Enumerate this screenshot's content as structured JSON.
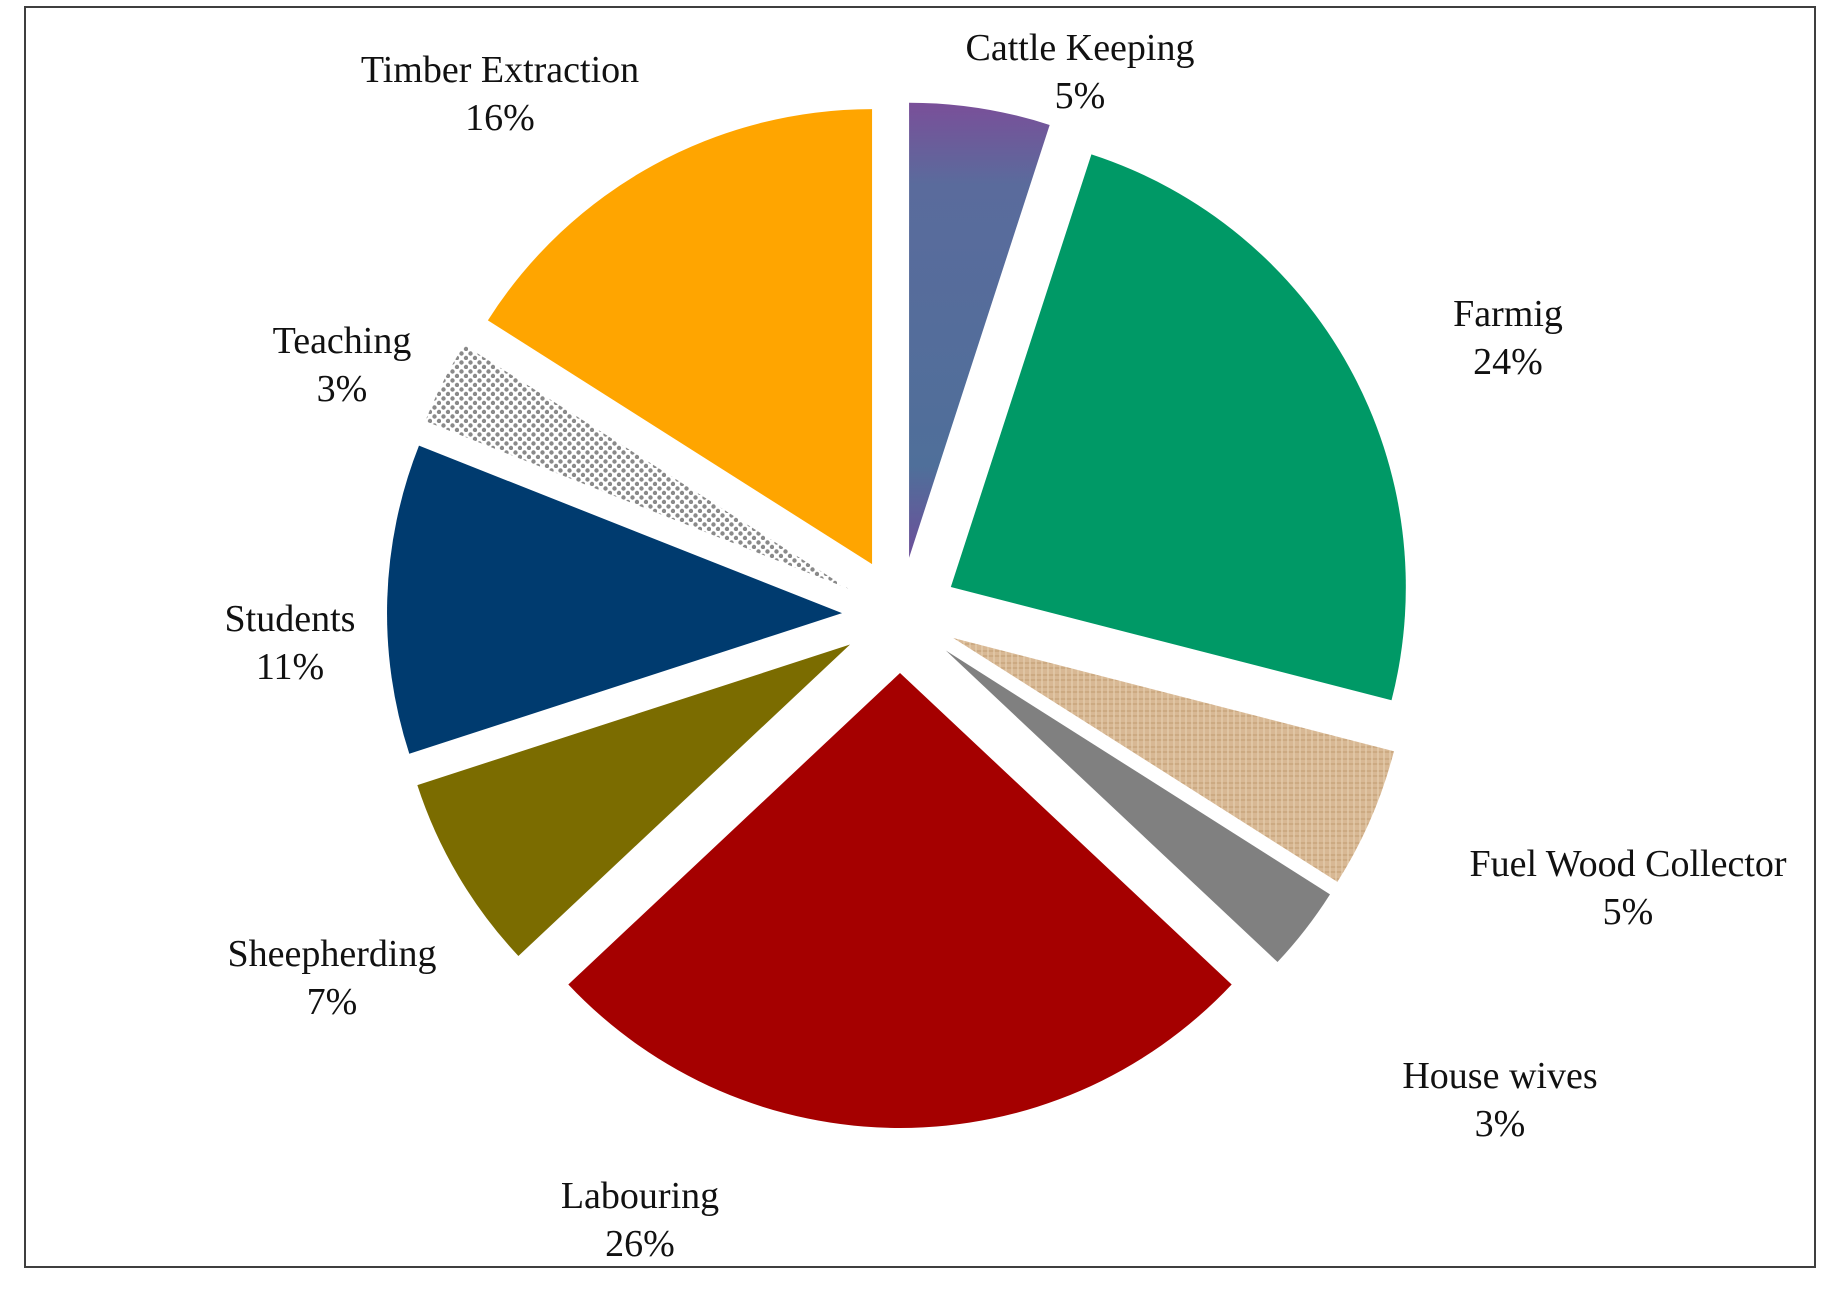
{
  "chart_data": {
    "type": "pie",
    "title": "",
    "exploded": true,
    "start": "top",
    "direction": "clockwise",
    "slices": [
      {
        "name": "Cattle Keeping",
        "value": 5,
        "pct_label": "5%",
        "color": "#4f6f9a",
        "fill_style": "gradient-top-purple"
      },
      {
        "name": "Farmig",
        "value": 24,
        "pct_label": "24%",
        "color": "#009966",
        "fill_style": "solid"
      },
      {
        "name": "Fuel Wood Collector",
        "value": 5,
        "pct_label": "5%",
        "color": "#d8b894",
        "fill_style": "textured"
      },
      {
        "name": "House wives",
        "value": 3,
        "pct_label": "3%",
        "color": "#808080",
        "fill_style": "solid"
      },
      {
        "name": "Labouring",
        "value": 26,
        "pct_label": "26%",
        "color": "#a50000",
        "fill_style": "solid"
      },
      {
        "name": "Sheepherding",
        "value": 7,
        "pct_label": "7%",
        "color": "#7b6c00",
        "fill_style": "solid"
      },
      {
        "name": "Students",
        "value": 11,
        "pct_label": "11%",
        "color": "#003b6f",
        "fill_style": "solid"
      },
      {
        "name": "Teaching",
        "value": 3,
        "pct_label": "3%",
        "color": "#9a9a9a",
        "fill_style": "dotted-pattern"
      },
      {
        "name": "Timber Extraction",
        "value": 16,
        "pct_label": "16%",
        "color": "#ffa500",
        "fill_style": "solid"
      }
    ]
  }
}
